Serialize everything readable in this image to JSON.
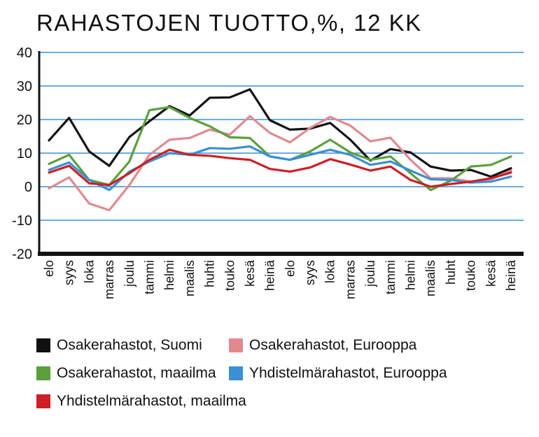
{
  "chart_data": {
    "type": "line",
    "title": "RAHASTOJEN TUOTTO,%, 12 KK",
    "xlabel": "",
    "ylabel": "",
    "ylim": [
      -20,
      40
    ],
    "yticks": [
      -20,
      -10,
      0,
      10,
      20,
      30,
      40
    ],
    "grid": true,
    "legend_position": "bottom",
    "categories": [
      "elo",
      "syys",
      "loka",
      "marras",
      "joulu",
      "tammi",
      "helmi",
      "maalis",
      "huhti",
      "touko",
      "kesä",
      "heinä",
      "elo",
      "syys",
      "loka",
      "marras",
      "joulu",
      "tammi",
      "helmi",
      "maalis",
      "huht",
      "touko",
      "kesä",
      "heinä"
    ],
    "series": [
      {
        "name": "Osakerahastot, Suomi",
        "color": "#111111",
        "values": [
          13.8,
          20.5,
          10.5,
          6.2,
          14.8,
          19.5,
          24.0,
          21.2,
          26.5,
          26.6,
          29.0,
          19.8,
          17.0,
          17.3,
          19.0,
          14.0,
          7.8,
          11.2,
          10.2,
          6.0,
          4.8,
          5.0,
          3.0,
          5.5
        ]
      },
      {
        "name": "Osakerahastot, Eurooppa",
        "color": "#e08a90",
        "values": [
          -0.5,
          2.8,
          -5.0,
          -7.0,
          0.5,
          9.5,
          14.0,
          14.5,
          17.0,
          15.5,
          21.0,
          16.0,
          13.2,
          17.5,
          20.8,
          18.2,
          13.5,
          14.6,
          8.0,
          2.5,
          2.5,
          1.5,
          2.2,
          4.8
        ]
      },
      {
        "name": "Osakerahastot, maailma",
        "color": "#5aa03c",
        "values": [
          6.8,
          9.5,
          2.0,
          0.5,
          7.5,
          22.8,
          23.7,
          20.5,
          18.0,
          14.7,
          14.5,
          9.0,
          8.0,
          10.5,
          14.0,
          10.2,
          8.0,
          9.0,
          4.0,
          -1.0,
          1.8,
          6.0,
          6.5,
          9.0
        ]
      },
      {
        "name": "Yhdistelmärahastot, Eurooppa",
        "color": "#3b8fd4",
        "values": [
          5.0,
          7.2,
          2.0,
          -1.0,
          4.5,
          7.5,
          10.0,
          9.5,
          11.5,
          11.3,
          12.0,
          9.0,
          8.0,
          9.5,
          11.0,
          9.5,
          6.5,
          7.5,
          4.8,
          2.2,
          2.0,
          1.2,
          1.5,
          3.0
        ]
      },
      {
        "name": "Yhdistelmärahastot, maailma",
        "color": "#cc1f26",
        "values": [
          4.2,
          6.2,
          1.0,
          0.5,
          4.0,
          8.0,
          11.0,
          9.5,
          9.2,
          8.5,
          8.0,
          5.3,
          4.5,
          5.7,
          8.2,
          6.6,
          4.8,
          6.0,
          2.0,
          0.0,
          0.8,
          1.5,
          2.5,
          4.2
        ]
      }
    ]
  }
}
